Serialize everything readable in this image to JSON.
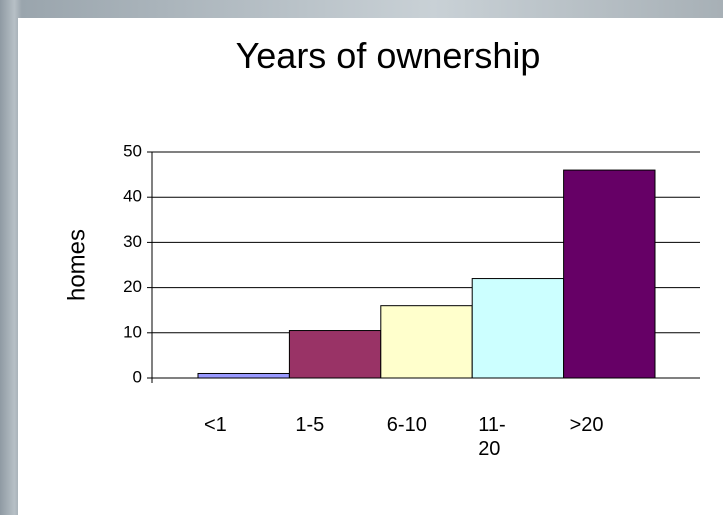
{
  "chart_data": {
    "type": "bar",
    "title": "Years of ownership",
    "ylabel": "homes",
    "categories": [
      "<1",
      "1-5",
      "6-10",
      "11-20",
      ">20"
    ],
    "values": [
      1,
      10.5,
      16,
      22,
      46
    ],
    "colors": [
      "#9999ff",
      "#993366",
      "#ffffcc",
      "#ccffff",
      "#660066"
    ],
    "ylim": [
      0,
      50
    ],
    "yticks": [
      0,
      10,
      20,
      30,
      40,
      50
    ],
    "grid": true
  }
}
